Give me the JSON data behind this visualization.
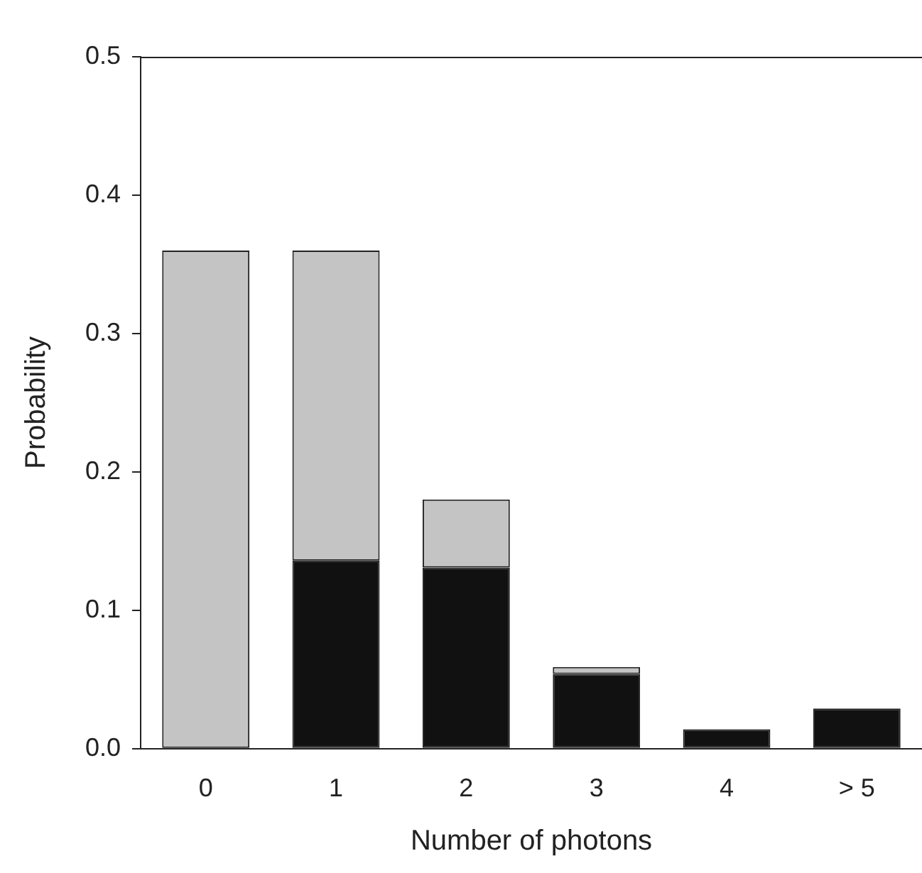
{
  "chart_data": {
    "type": "bar",
    "stacked": true,
    "xlabel": "Number of photons",
    "ylabel": "Probability",
    "categories": [
      "0",
      "1",
      "2",
      "3",
      "4",
      "> 5"
    ],
    "series": [
      {
        "color": "#111111",
        "values": [
          0,
          0.136,
          0.131,
          0.054,
          0.014,
          0.029
        ]
      },
      {
        "color": "#c4c4c4",
        "values": [
          0.36,
          0.224,
          0.049,
          0.005,
          0,
          0
        ]
      }
    ],
    "ylim": [
      0,
      0.5
    ],
    "yticks": [
      {
        "value": 0,
        "label": "0.0"
      },
      {
        "value": 0.1,
        "label": "0.1"
      },
      {
        "value": 0.2,
        "label": "0.2"
      },
      {
        "value": 0.3,
        "label": "0.3"
      },
      {
        "value": 0.4,
        "label": "0.4"
      },
      {
        "value": 0.5,
        "label": "0.5"
      }
    ],
    "grid": false,
    "legend": false
  }
}
